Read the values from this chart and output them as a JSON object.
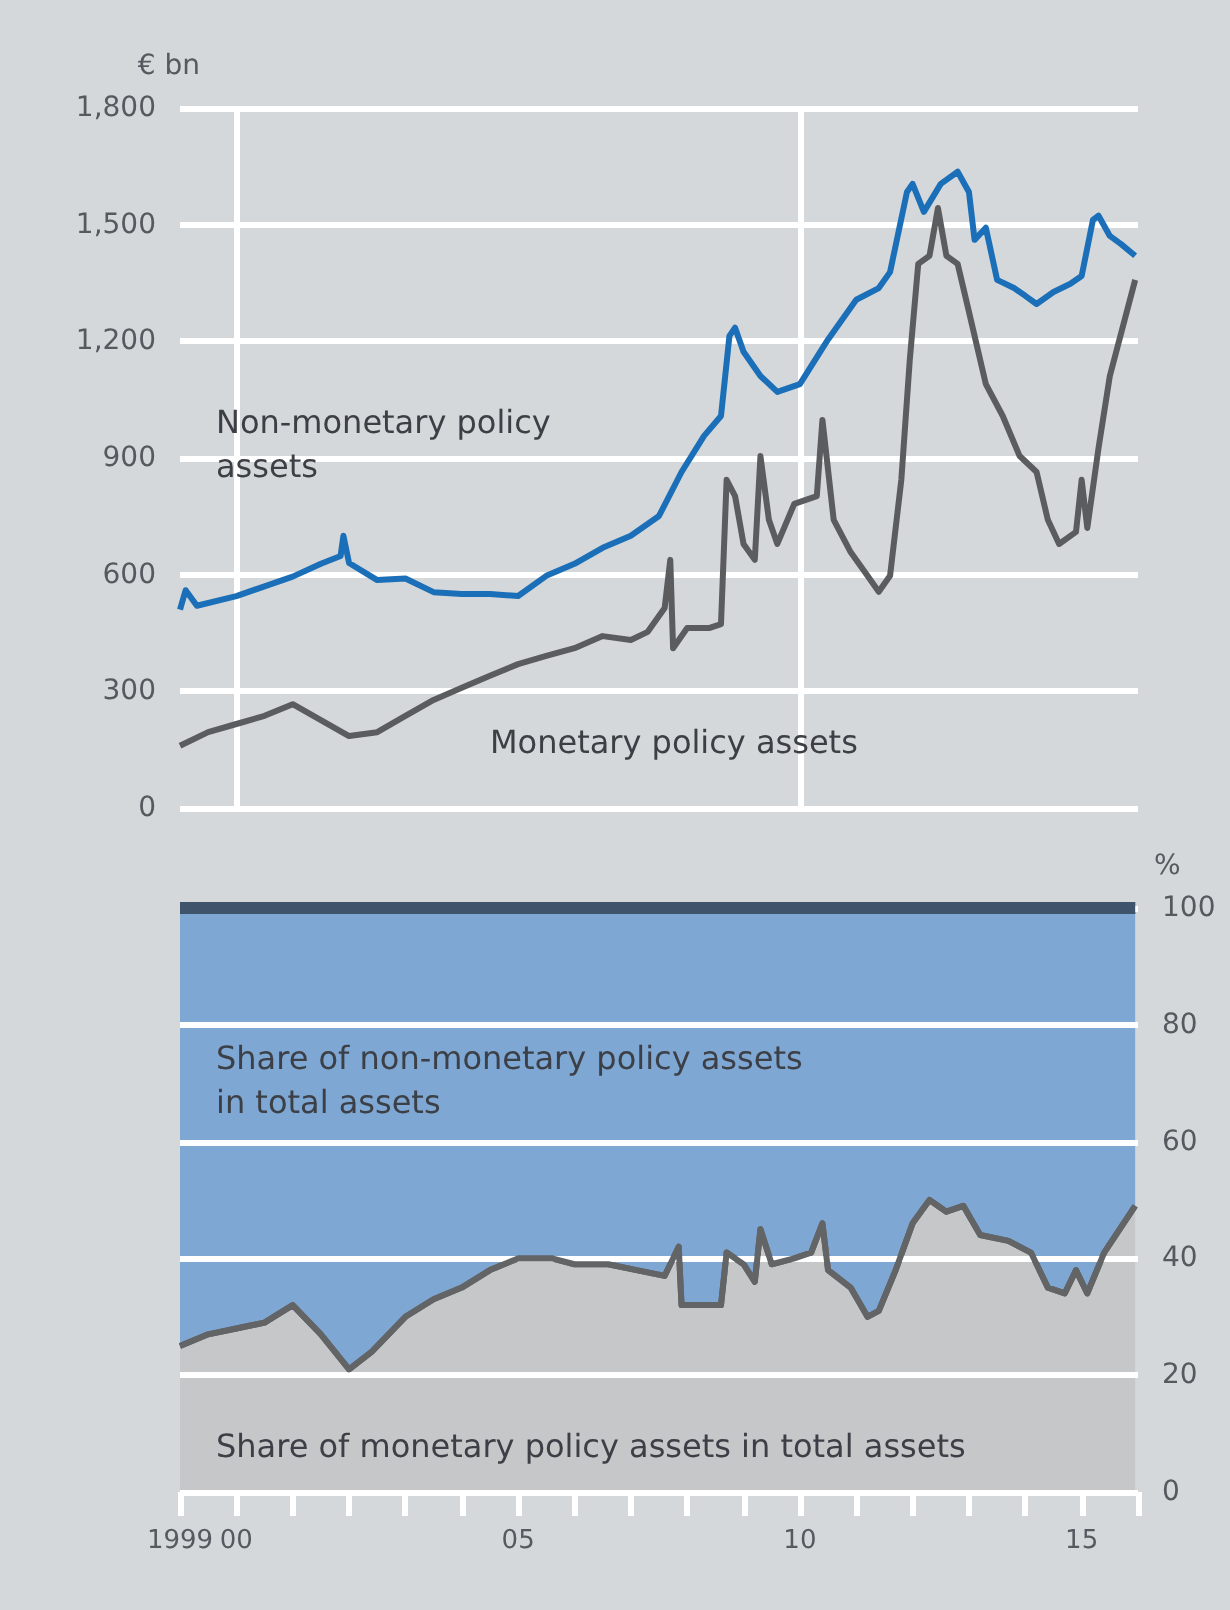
{
  "chart_data": [
    {
      "type": "line",
      "ylabel": "€ bn",
      "xlim": [
        1999,
        2016
      ],
      "ylim": [
        0,
        1800
      ],
      "yticks": [
        0,
        300,
        600,
        900,
        {
          "value": 1200,
          "label": "1,200"
        },
        {
          "value": 1500,
          "label": "1,500"
        },
        {
          "value": 1800,
          "label": "1,800"
        }
      ],
      "tick_labels": "y",
      "grid": true,
      "marker": "none",
      "xticks": [
        2000,
        2010
      ],
      "series": [
        {
          "name": "Non-monetary policy assets",
          "color": "#1a6fb8",
          "x": [
            1999.0,
            1999.1,
            1999.3,
            2000.0,
            2000.5,
            2001.0,
            2001.5,
            2001.85,
            2001.9,
            2002.0,
            2002.5,
            2003.0,
            2003.5,
            2004.0,
            2004.5,
            2005.0,
            2005.5,
            2006.0,
            2006.5,
            2007.0,
            2007.5,
            2007.9,
            2008.3,
            2008.6,
            2008.75,
            2008.85,
            2009.0,
            2009.3,
            2009.6,
            2010.0,
            2010.5,
            2011.0,
            2011.4,
            2011.6,
            2011.9,
            2012.0,
            2012.2,
            2012.5,
            2012.8,
            2013.0,
            2013.1,
            2013.3,
            2013.5,
            2013.8,
            2014.0,
            2014.2,
            2014.5,
            2014.8,
            2015.0,
            2015.2,
            2015.3,
            2015.5,
            2015.7,
            2015.95
          ],
          "values": [
            510,
            560,
            520,
            545,
            570,
            595,
            628,
            648,
            700,
            630,
            586,
            590,
            555,
            550,
            550,
            545,
            597,
            628,
            669,
            700,
            751,
            864,
            957,
            1008,
            1214,
            1235,
            1173,
            1111,
            1070,
            1090,
            1205,
            1307,
            1337,
            1378,
            1584,
            1605,
            1533,
            1605,
            1636,
            1584,
            1461,
            1492,
            1358,
            1337,
            1317,
            1296,
            1327,
            1348,
            1368,
            1512,
            1523,
            1471,
            1450,
            1420
          ]
        },
        {
          "name": "Monetary policy assets",
          "color": "#5b5c5e",
          "x": [
            1999.0,
            1999.5,
            2000.0,
            2000.5,
            2001.0,
            2001.5,
            2002.0,
            2002.5,
            2003.0,
            2003.5,
            2004.0,
            2004.5,
            2005.0,
            2005.5,
            2006.0,
            2006.5,
            2007.0,
            2007.3,
            2007.6,
            2007.7,
            2007.75,
            2008.0,
            2008.4,
            2008.6,
            2008.7,
            2008.85,
            2009.0,
            2009.2,
            2009.3,
            2009.45,
            2009.6,
            2009.9,
            2010.3,
            2010.4,
            2010.6,
            2010.9,
            2011.2,
            2011.4,
            2011.6,
            2011.8,
            2011.95,
            2012.1,
            2012.3,
            2012.45,
            2012.6,
            2012.8,
            2013.0,
            2013.3,
            2013.6,
            2013.9,
            2014.2,
            2014.4,
            2014.6,
            2014.9,
            2015.0,
            2015.1,
            2015.3,
            2015.5,
            2015.95
          ],
          "values": [
            160,
            195,
            216,
            237,
            267,
            226,
            185,
            195,
            237,
            278,
            309,
            340,
            370,
            391,
            411,
            442,
            432,
            453,
            514,
            638,
            411,
            463,
            463,
            473,
            844,
            802,
            679,
            638,
            905,
            741,
            679,
            782,
            802,
            998,
            741,
            658,
            597,
            556,
            597,
            844,
            1152,
            1399,
            1420,
            1543,
            1420,
            1399,
            1276,
            1090,
            1008,
            905,
            864,
            741,
            679,
            710,
            844,
            720,
            926,
            1111,
            1358
          ]
        }
      ]
    },
    {
      "type": "area",
      "stacked": true,
      "ylabel": "%",
      "xlim": [
        1999,
        2016
      ],
      "ylim": [
        0,
        100
      ],
      "yticks": [
        0,
        20,
        40,
        60,
        80,
        100
      ],
      "grid": "y",
      "marker": "none",
      "xticks": [
        {
          "value": 1999,
          "label": "1999"
        },
        {
          "value": 2000,
          "label": "00"
        },
        {
          "value": 2001,
          "label": null
        },
        {
          "value": 2002,
          "label": null
        },
        {
          "value": 2003,
          "label": null
        },
        {
          "value": 2004,
          "label": null
        },
        {
          "value": 2005,
          "label": "05"
        },
        {
          "value": 2006,
          "label": null
        },
        {
          "value": 2007,
          "label": null
        },
        {
          "value": 2008,
          "label": null
        },
        {
          "value": 2009,
          "label": null
        },
        {
          "value": 2010,
          "label": "10"
        },
        {
          "value": 2011,
          "label": null
        },
        {
          "value": 2012,
          "label": null
        },
        {
          "value": 2013,
          "label": null
        },
        {
          "value": 2014,
          "label": null
        },
        {
          "value": 2015,
          "label": "15"
        },
        {
          "value": 2016,
          "label": null
        }
      ],
      "x": [
        1999.0,
        1999.5,
        2000.0,
        2000.5,
        2001.0,
        2001.5,
        2002.0,
        2002.4,
        2003.0,
        2003.5,
        2004.0,
        2004.5,
        2005.0,
        2005.6,
        2006.0,
        2006.6,
        2007.1,
        2007.6,
        2007.85,
        2007.9,
        2008.3,
        2008.6,
        2008.7,
        2009.0,
        2009.2,
        2009.3,
        2009.5,
        2009.9,
        2010.2,
        2010.4,
        2010.5,
        2010.9,
        2011.2,
        2011.4,
        2011.7,
        2012.0,
        2012.3,
        2012.6,
        2012.9,
        2013.2,
        2013.7,
        2014.1,
        2014.4,
        2014.7,
        2014.9,
        2015.1,
        2015.4,
        2015.95
      ],
      "series": [
        {
          "name": "Share of monetary policy assets in total assets",
          "color": "#c6c7c9",
          "values": [
            25,
            27,
            28,
            29,
            32,
            27,
            21,
            24,
            30,
            33,
            35,
            38,
            40,
            40,
            39,
            39,
            38,
            37,
            42,
            32,
            32,
            32,
            41,
            39,
            36,
            45,
            39,
            40,
            41,
            46,
            38,
            35,
            30,
            31,
            38,
            46,
            50,
            48,
            49,
            44,
            43,
            41,
            35,
            34,
            38,
            34,
            41,
            49
          ]
        },
        {
          "name": "Share of non-monetary policy assets in total assets",
          "color": "#7ea7d4",
          "values": [
            75,
            73,
            72,
            71,
            68,
            73,
            79,
            76,
            70,
            67,
            65,
            62,
            60,
            60,
            61,
            61,
            62,
            63,
            58,
            68,
            68,
            68,
            59,
            61,
            64,
            55,
            61,
            60,
            59,
            54,
            62,
            65,
            70,
            69,
            62,
            54,
            50,
            52,
            51,
            56,
            57,
            59,
            65,
            66,
            62,
            66,
            59,
            51
          ]
        }
      ]
    }
  ]
}
